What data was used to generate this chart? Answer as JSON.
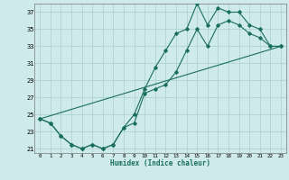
{
  "xlabel": "Humidex (Indice chaleur)",
  "ylabel": "",
  "bg_color": "#ceeaea",
  "grid_color": "#aacece",
  "line_color": "#1a6e5e",
  "xlim": [
    -0.5,
    23.5
  ],
  "ylim": [
    20.5,
    38.0
  ],
  "xticks": [
    0,
    1,
    2,
    3,
    4,
    5,
    6,
    7,
    8,
    9,
    10,
    11,
    12,
    13,
    14,
    15,
    16,
    17,
    18,
    19,
    20,
    21,
    22,
    23
  ],
  "yticks": [
    21,
    23,
    25,
    27,
    29,
    31,
    33,
    35,
    37
  ],
  "series1_x": [
    0,
    1,
    2,
    3,
    4,
    5,
    6,
    7,
    8,
    9,
    10,
    11,
    12,
    13,
    14,
    15,
    16,
    17,
    18,
    19,
    20,
    21,
    22,
    23
  ],
  "series1_y": [
    24.5,
    24.0,
    22.5,
    21.5,
    21.0,
    21.5,
    21.0,
    21.5,
    23.5,
    25.0,
    28.0,
    30.5,
    32.5,
    34.5,
    35.0,
    38.0,
    35.5,
    37.5,
    37.0,
    37.0,
    35.5,
    35.0,
    33.0,
    33.0
  ],
  "series2_x": [
    0,
    1,
    2,
    3,
    4,
    5,
    6,
    7,
    8,
    9,
    10,
    11,
    12,
    13,
    14,
    15,
    16,
    17,
    18,
    19,
    20,
    21,
    22,
    23
  ],
  "series2_y": [
    24.5,
    24.0,
    22.5,
    21.5,
    21.0,
    21.5,
    21.0,
    21.5,
    23.5,
    24.0,
    27.5,
    28.0,
    28.5,
    30.0,
    32.5,
    35.0,
    33.0,
    35.5,
    36.0,
    35.5,
    34.5,
    34.0,
    33.0,
    33.0
  ],
  "series3_x": [
    0,
    23
  ],
  "series3_y": [
    24.5,
    33.0
  ]
}
